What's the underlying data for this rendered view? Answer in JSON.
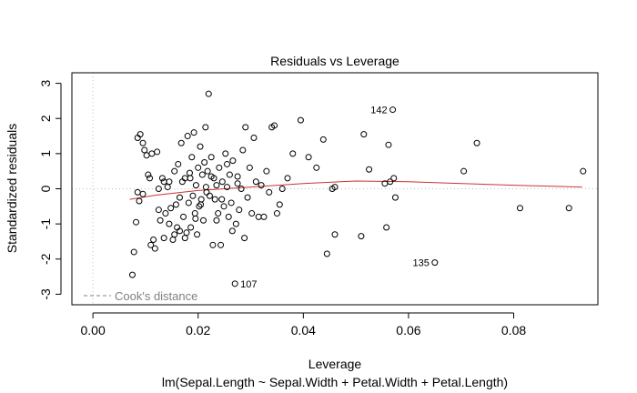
{
  "chart_data": {
    "type": "scatter",
    "title": "Residuals vs Leverage",
    "xlabel": "Leverage",
    "ylabel": "Standardized residuals",
    "subtitle": "lm(Sepal.Length ~ Sepal.Width + Petal.Width + Petal.Length)",
    "xlim": [
      -0.004,
      0.096
    ],
    "ylim": [
      -3.3,
      3.3
    ],
    "xticks": [
      0.0,
      0.02,
      0.04,
      0.06,
      0.08
    ],
    "xtick_labels": [
      "0.00",
      "0.02",
      "0.04",
      "0.06",
      "0.08"
    ],
    "yticks": [
      -3,
      -2,
      -1,
      0,
      1,
      2,
      3
    ],
    "ytick_labels": [
      "-3",
      "-2",
      "-1",
      "0",
      "1",
      "2",
      "3"
    ],
    "legend": {
      "label": "Cook's distance",
      "placement": "bottom-left",
      "style": "dashed"
    },
    "grid": false,
    "reference_lines": {
      "x": 0,
      "y": 0,
      "style": "dotted",
      "color": "#bebebe"
    },
    "smooth_color": "#cc3333",
    "point_color": "#000000",
    "series": [
      {
        "points": [
          [
            0.0075,
            -2.45
          ],
          [
            0.0078,
            -1.8
          ],
          [
            0.0082,
            -0.95
          ],
          [
            0.0085,
            1.45
          ],
          [
            0.0088,
            -0.35
          ],
          [
            0.009,
            1.55
          ],
          [
            0.0095,
            1.3
          ],
          [
            0.0098,
            1.1
          ],
          [
            0.0102,
            0.95
          ],
          [
            0.0105,
            0.4
          ],
          [
            0.0108,
            0.3
          ],
          [
            0.0112,
            1.0
          ],
          [
            0.0115,
            -1.45
          ],
          [
            0.0118,
            -1.7
          ],
          [
            0.0122,
            1.05
          ],
          [
            0.0125,
            -0.6
          ],
          [
            0.0128,
            -0.9
          ],
          [
            0.0132,
            0.3
          ],
          [
            0.0135,
            -1.4
          ],
          [
            0.0138,
            -0.7
          ],
          [
            0.0142,
            0.05
          ],
          [
            0.0145,
            0.2
          ],
          [
            0.0148,
            -0.55
          ],
          [
            0.0152,
            -1.45
          ],
          [
            0.0155,
            0.5
          ],
          [
            0.0158,
            -0.45
          ],
          [
            0.016,
            -1.1
          ],
          [
            0.0162,
            0.7
          ],
          [
            0.0165,
            -1.2
          ],
          [
            0.0168,
            1.3
          ],
          [
            0.017,
            0.2
          ],
          [
            0.0172,
            -0.8
          ],
          [
            0.0175,
            0.3
          ],
          [
            0.0178,
            -1.25
          ],
          [
            0.018,
            1.5
          ],
          [
            0.0182,
            -0.4
          ],
          [
            0.0184,
            0.45
          ],
          [
            0.0186,
            -1.1
          ],
          [
            0.0188,
            0.9
          ],
          [
            0.019,
            -0.2
          ],
          [
            0.0192,
            1.6
          ],
          [
            0.0194,
            -0.7
          ],
          [
            0.0196,
            0.1
          ],
          [
            0.0198,
            -1.3
          ],
          [
            0.02,
            0.6
          ],
          [
            0.0202,
            -0.5
          ],
          [
            0.0204,
            1.2
          ],
          [
            0.0206,
            -0.3
          ],
          [
            0.0208,
            0.4
          ],
          [
            0.021,
            -0.9
          ],
          [
            0.0212,
            0.75
          ],
          [
            0.0214,
            1.75
          ],
          [
            0.0216,
            -0.1
          ],
          [
            0.0218,
            0.5
          ],
          [
            0.022,
            2.7
          ],
          [
            0.0222,
            -0.2
          ],
          [
            0.0225,
            0.9
          ],
          [
            0.0228,
            -1.6
          ],
          [
            0.023,
            0.3
          ],
          [
            0.0232,
            -0.3
          ],
          [
            0.0235,
            0.1
          ],
          [
            0.0238,
            -0.7
          ],
          [
            0.024,
            0.6
          ],
          [
            0.0243,
            -1.6
          ],
          [
            0.0246,
            0.2
          ],
          [
            0.0249,
            -0.5
          ],
          [
            0.0252,
            1.0
          ],
          [
            0.0255,
            0.05
          ],
          [
            0.0258,
            -0.8
          ],
          [
            0.026,
            0.4
          ],
          [
            0.0263,
            -0.4
          ],
          [
            0.0266,
            0.8
          ],
          [
            0.027,
            -2.7
          ],
          [
            0.0272,
            -1.0
          ],
          [
            0.0275,
            0.35
          ],
          [
            0.0278,
            -0.6
          ],
          [
            0.0282,
            0.0
          ],
          [
            0.0285,
            1.1
          ],
          [
            0.0288,
            -1.4
          ],
          [
            0.029,
            1.75
          ],
          [
            0.0294,
            -0.25
          ],
          [
            0.0298,
            0.6
          ],
          [
            0.0302,
            -0.7
          ],
          [
            0.0306,
            1.45
          ],
          [
            0.031,
            0.2
          ],
          [
            0.0315,
            -0.8
          ],
          [
            0.032,
            0.1
          ],
          [
            0.0325,
            -0.8
          ],
          [
            0.033,
            0.5
          ],
          [
            0.0335,
            -0.1
          ],
          [
            0.034,
            1.75
          ],
          [
            0.0345,
            1.8
          ],
          [
            0.035,
            -0.7
          ],
          [
            0.0355,
            -0.45
          ],
          [
            0.036,
            0.0
          ],
          [
            0.037,
            0.3
          ],
          [
            0.038,
            1.0
          ],
          [
            0.0395,
            1.95
          ],
          [
            0.041,
            0.9
          ],
          [
            0.0425,
            0.6
          ],
          [
            0.0438,
            1.4
          ],
          [
            0.0445,
            -1.85
          ],
          [
            0.0455,
            0.0
          ],
          [
            0.046,
            -1.3
          ],
          [
            0.046,
            0.05
          ],
          [
            0.051,
            -1.35
          ],
          [
            0.0515,
            1.55
          ],
          [
            0.0525,
            0.55
          ],
          [
            0.0555,
            0.15
          ],
          [
            0.0558,
            -1.1
          ],
          [
            0.0562,
            1.25
          ],
          [
            0.0565,
            0.2
          ],
          [
            0.0572,
            0.3
          ],
          [
            0.0575,
            -0.25
          ],
          [
            0.065,
            -2.1
          ],
          [
            0.0705,
            0.5
          ],
          [
            0.073,
            1.3
          ],
          [
            0.0812,
            -0.55
          ],
          [
            0.0905,
            -0.55
          ],
          [
            0.0932,
            0.5
          ],
          [
            0.057,
            2.25
          ],
          [
            0.0085,
            -0.1
          ],
          [
            0.0095,
            -0.15
          ],
          [
            0.011,
            -1.6
          ],
          [
            0.0125,
            0.0
          ],
          [
            0.0135,
            0.2
          ],
          [
            0.0145,
            -1.0
          ],
          [
            0.0155,
            -1.3
          ],
          [
            0.0165,
            -0.25
          ],
          [
            0.0175,
            -1.4
          ],
          [
            0.0185,
            0.3
          ],
          [
            0.0195,
            -0.85
          ],
          [
            0.0205,
            -0.45
          ],
          [
            0.0215,
            0.05
          ],
          [
            0.0225,
            0.35
          ],
          [
            0.0235,
            -0.9
          ],
          [
            0.0245,
            -0.3
          ],
          [
            0.0255,
            0.7
          ],
          [
            0.0265,
            -1.2
          ],
          [
            0.0275,
            0.15
          ]
        ]
      }
    ],
    "smooth": [
      [
        0.007,
        -0.3
      ],
      [
        0.012,
        -0.18
      ],
      [
        0.02,
        -0.05
      ],
      [
        0.03,
        0.05
      ],
      [
        0.04,
        0.15
      ],
      [
        0.05,
        0.22
      ],
      [
        0.06,
        0.2
      ],
      [
        0.07,
        0.15
      ],
      [
        0.08,
        0.1
      ],
      [
        0.093,
        0.05
      ]
    ],
    "point_labels": [
      {
        "text": "142",
        "x": 0.057,
        "y": 2.25,
        "side": "left"
      },
      {
        "text": "135",
        "x": 0.065,
        "y": -2.1,
        "side": "left"
      },
      {
        "text": "107",
        "x": 0.027,
        "y": -2.7,
        "side": "right"
      }
    ]
  }
}
